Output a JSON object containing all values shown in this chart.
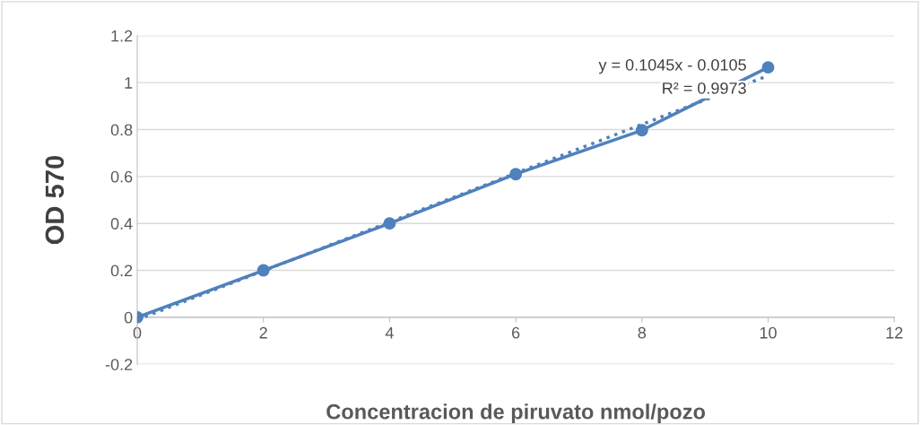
{
  "chart_data": {
    "type": "line",
    "xlabel": "Concentracion de piruvato nmol/pozo",
    "ylabel": "OD 570",
    "xlim": [
      0,
      12
    ],
    "xticks": [
      0,
      2,
      4,
      6,
      8,
      10,
      12
    ],
    "ylim": [
      -0.2,
      1.2
    ],
    "yticks": [
      -0.2,
      0,
      0.2,
      0.4,
      0.6,
      0.8,
      1,
      1.2
    ],
    "grid": "y",
    "series": [
      {
        "color": "#4f81bd",
        "x": [
          0,
          2,
          4,
          6,
          8,
          10
        ],
        "values": [
          0,
          0.2,
          0.4,
          0.61,
          0.797,
          1.065
        ],
        "marker": "circle",
        "line_style": "solid"
      },
      {
        "color": "#4f81bd",
        "x": [
          0,
          10
        ],
        "values": [
          -0.01,
          1.03
        ],
        "marker": "none",
        "line_style": "dotted"
      }
    ],
    "annotations": [
      "y = 0.1045x - 0.0105",
      "R² = 0.9973"
    ]
  }
}
